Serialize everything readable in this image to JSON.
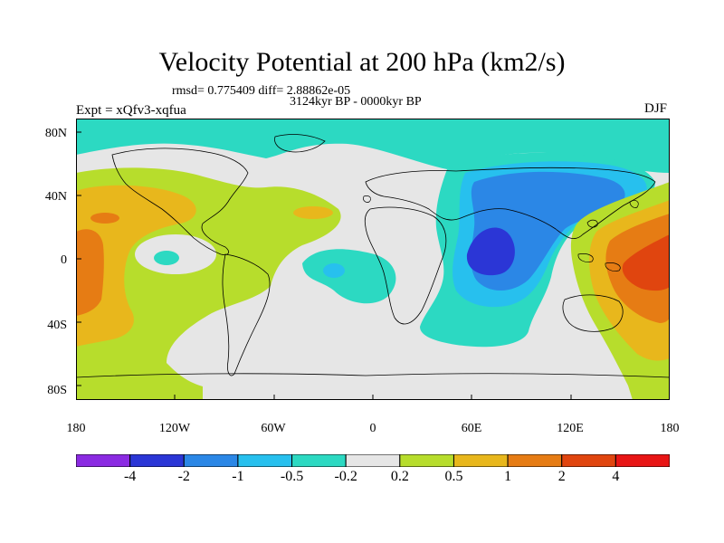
{
  "title": "Velocity Potential at 200 hPa (km2/s)",
  "stats_line": "rmsd= 0.775409 diff= 2.88862e-05",
  "period_line": "3124kyr BP - 0000kyr BP",
  "experiment_label": "Expt = xQfv3-xqfua",
  "season_label": "DJF",
  "map": {
    "projection": "cylindrical equidistant",
    "lon_range": [
      -180,
      180
    ],
    "lat_range": [
      -90,
      90
    ],
    "land_fill": "#e6e6e6",
    "y_ticks": [
      "80N",
      "40N",
      "0",
      "40S",
      "80S"
    ],
    "x_ticks": [
      "180",
      "120W",
      "60W",
      "0",
      "60E",
      "120E",
      "180"
    ]
  },
  "colorbar": {
    "colors": [
      "#8b2be2",
      "#2b36d6",
      "#2b87e6",
      "#27c0ee",
      "#2cd9c2",
      "#e6e6e6",
      "#b7dd2c",
      "#e8b71c",
      "#e67c14",
      "#e0450f",
      "#e81515"
    ],
    "labels": [
      "-4",
      "-2",
      "-1",
      "-0.5",
      "-0.2",
      "0.2",
      "0.5",
      "1",
      "2",
      "4"
    ]
  }
}
